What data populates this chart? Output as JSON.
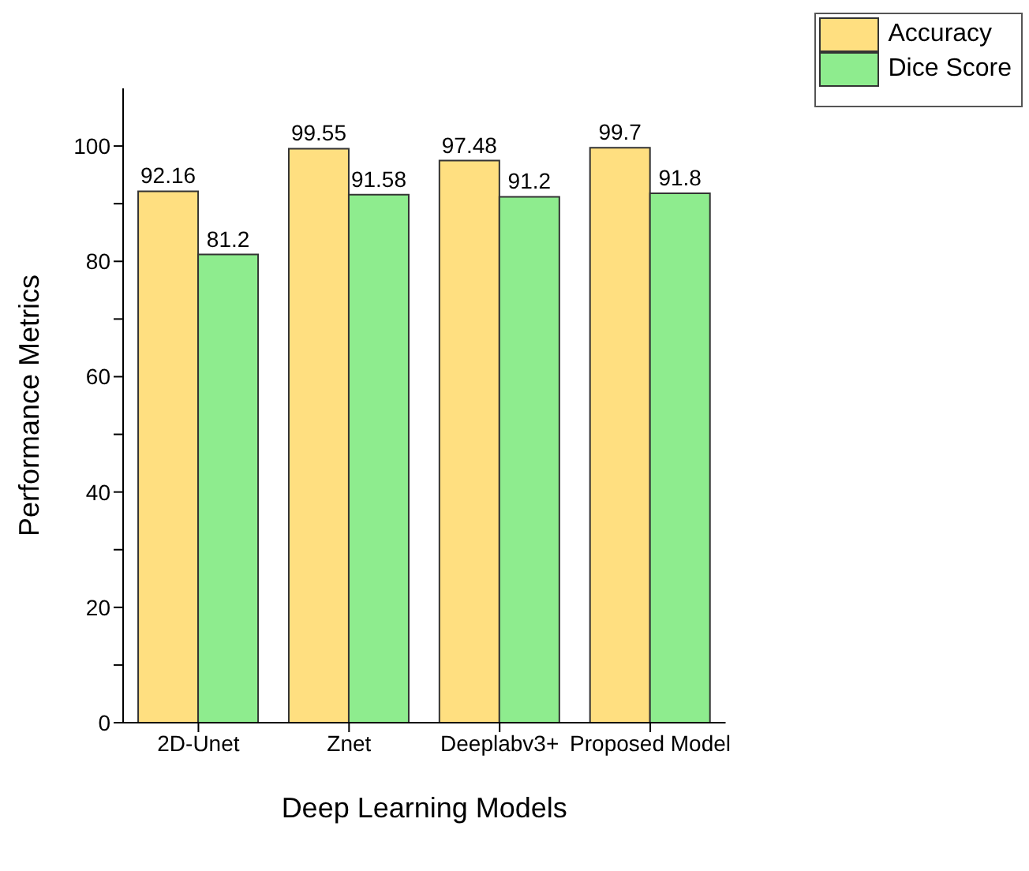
{
  "chart_data": {
    "type": "bar",
    "xlabel": "Deep Learning Models",
    "ylabel": "Performance Metrics",
    "categories": [
      "2D-Unet",
      "Znet",
      "Deeplabv3+",
      "Proposed Model"
    ],
    "series": [
      {
        "name": "Accuracy",
        "color": "#ffdf80",
        "values": [
          92.16,
          99.55,
          97.48,
          99.7
        ]
      },
      {
        "name": "Dice Score",
        "color": "#8eec8e",
        "values": [
          81.2,
          91.58,
          91.2,
          91.8
        ]
      }
    ],
    "ylim": [
      0,
      110
    ],
    "yticks": [
      0,
      {
        "value": 10,
        "label": null
      },
      20,
      {
        "value": 30,
        "label": null
      },
      40,
      {
        "value": 50,
        "label": null
      },
      60,
      {
        "value": 70,
        "label": null
      },
      80,
      {
        "value": 90,
        "label": null
      },
      100
    ],
    "data_labels": true,
    "grid": false,
    "legend": "top right"
  }
}
